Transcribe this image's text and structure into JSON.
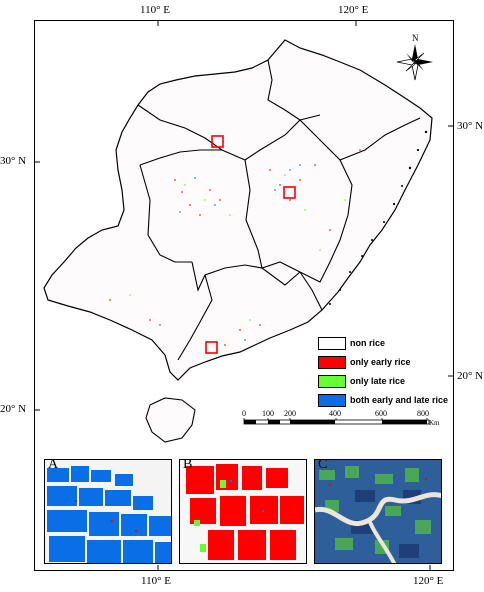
{
  "axis_labels": {
    "top_lon_1": "110° E",
    "top_lon_2": "120° E",
    "bottom_lon_1": "110° E",
    "bottom_lon_2": "120° E",
    "left_lat_1": "30° N",
    "left_lat_2": "20° N",
    "right_lat_1": "30° N",
    "right_lat_2": "20° N"
  },
  "north_arrow": {
    "label": "N"
  },
  "legend": {
    "items": [
      {
        "label": "non rice",
        "color": "#ffffff"
      },
      {
        "label": "only early rice",
        "color": "#ff0000"
      },
      {
        "label": "only late rice",
        "color": "#66ff33"
      },
      {
        "label": "both early and late rice",
        "color": "#0a6ee6"
      }
    ]
  },
  "scale_bar": {
    "ticks": [
      "0",
      "100",
      "200",
      "400",
      "600",
      "800"
    ],
    "unit": "Km"
  },
  "insets": [
    {
      "label": "A",
      "dominant_class": "both early and late rice"
    },
    {
      "label": "B",
      "dominant_class": "only early rice"
    },
    {
      "label": "C",
      "dominant_class": "mixed"
    }
  ],
  "colors": {
    "non_rice": "#ffffff",
    "early_rice": "#ff0000",
    "late_rice": "#66ff33",
    "double_rice": "#0a6ee6",
    "boundary": "#000000",
    "study_site_box": "#ff0000"
  }
}
